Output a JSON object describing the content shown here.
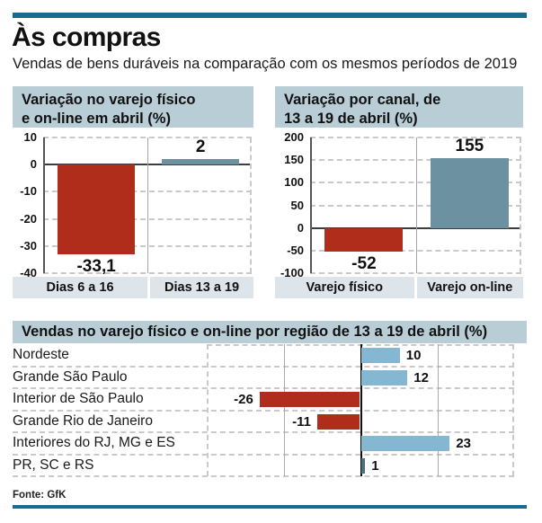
{
  "page": {
    "title": "Às compras",
    "subtitle": "Vendas de bens duráveis na comparação com os mesmos períodos de 2019",
    "source": "Fonte: GfK"
  },
  "colors": {
    "rule": "#186B8E",
    "header_band": "#B9CDD7",
    "category_band": "#DDE4EA",
    "red": "#B02D1B",
    "steel_blue": "#6C91A0",
    "light_blue": "#85B7D2",
    "dark_teal": "#4D707F"
  },
  "chart_data": [
    {
      "type": "bar",
      "title": "Variação no varejo físico e on-line em abril (%)",
      "categories": [
        "Dias 6 a 16",
        "Dias 13 a 19"
      ],
      "values": [
        -33.1,
        2
      ],
      "value_labels": [
        "-33,1",
        "2"
      ],
      "bar_colors": [
        "#B02D1B",
        "#6C91A0"
      ],
      "ylim": [
        -40,
        10
      ],
      "yticks": [
        10,
        0,
        -10,
        -20,
        -30,
        -40
      ],
      "grid": "dashed-horizontal, solid zero line"
    },
    {
      "type": "bar",
      "title": "Variação por canal, de 13 a 19  de abril (%)",
      "categories": [
        "Varejo físico",
        "Varejo on-line"
      ],
      "values": [
        -52,
        155
      ],
      "value_labels": [
        "-52",
        "155"
      ],
      "bar_colors": [
        "#B02D1B",
        "#6C91A0"
      ],
      "ylim": [
        -100,
        200
      ],
      "yticks": [
        200,
        150,
        100,
        50,
        0,
        -50,
        -100
      ],
      "grid": "dashed-horizontal, solid zero line"
    },
    {
      "type": "bar-horizontal",
      "title": "Vendas no varejo físico e on-line  por região de 13 a 19 de abril (%)",
      "categories": [
        "Nordeste",
        "Grande São Paulo",
        "Interior de São Paulo",
        "Grande Rio de Janeiro",
        "Interiores do RJ, MG e ES",
        "PR, SC e RS"
      ],
      "values": [
        10,
        12,
        -26,
        -11,
        23,
        1
      ],
      "value_labels": [
        "10",
        "12",
        "-26",
        "-11",
        "23",
        "1"
      ],
      "bar_colors": [
        "#85B7D2",
        "#85B7D2",
        "#B02D1B",
        "#B02D1B",
        "#85B7D2",
        "#4D707F"
      ],
      "xlim": [
        -40,
        40
      ],
      "xgrid_lines": [
        -40,
        -20,
        0,
        20,
        40
      ],
      "grid": "dashed row separators, solid vertical lines at ±20, solid zero axis"
    }
  ]
}
